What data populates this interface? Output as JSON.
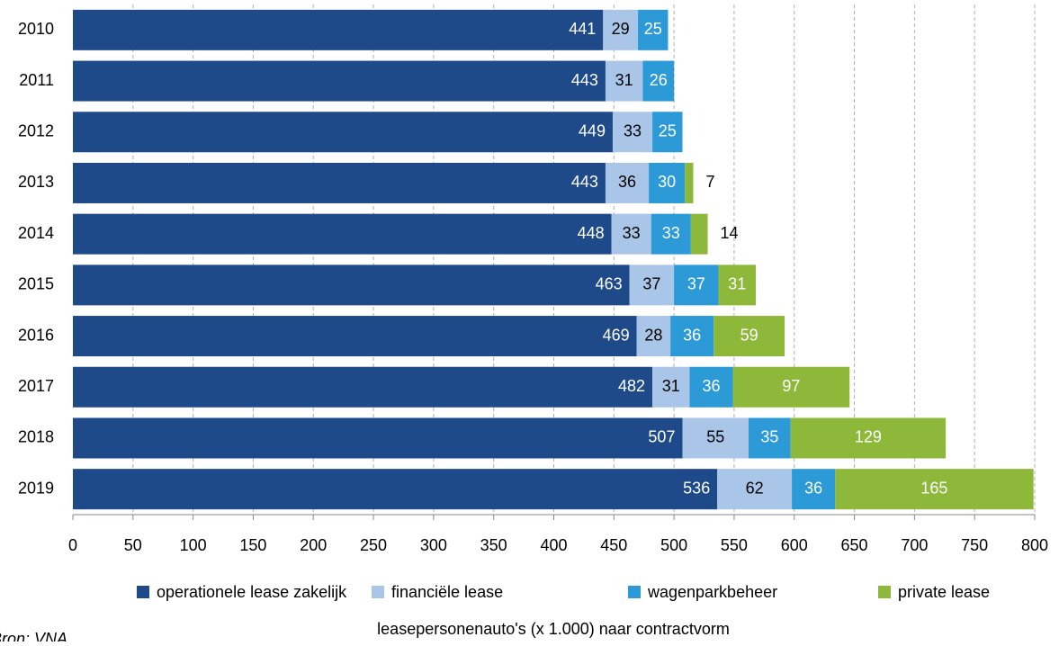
{
  "chart_data": {
    "type": "stacked_bar_horizontal",
    "categories": [
      "2010",
      "2011",
      "2012",
      "2013",
      "2014",
      "2015",
      "2016",
      "2017",
      "2018",
      "2019"
    ],
    "series": [
      {
        "name": "operationele lease zakelijk",
        "color": "#1f4a8a",
        "values": [
          441,
          443,
          449,
          443,
          448,
          463,
          469,
          482,
          507,
          536
        ]
      },
      {
        "name": "financiële lease",
        "color": "#a9c6e8",
        "values": [
          29,
          31,
          33,
          36,
          33,
          37,
          28,
          31,
          55,
          62
        ]
      },
      {
        "name": "wagenparkbeheer",
        "color": "#2b9ad6",
        "values": [
          25,
          26,
          25,
          30,
          33,
          37,
          36,
          36,
          35,
          36
        ]
      },
      {
        "name": "private lease",
        "color": "#8db83a",
        "values": [
          null,
          null,
          null,
          7,
          14,
          31,
          59,
          97,
          129,
          165
        ]
      }
    ],
    "xlim": [
      0,
      800
    ],
    "xticks": [
      0,
      50,
      100,
      150,
      200,
      250,
      300,
      350,
      400,
      450,
      500,
      550,
      600,
      650,
      700,
      750,
      800
    ],
    "grid": true,
    "legend": "bottom",
    "caption": "leasepersonenauto's (x 1.000) naar contractvorm",
    "source": "Bron: VNA"
  }
}
